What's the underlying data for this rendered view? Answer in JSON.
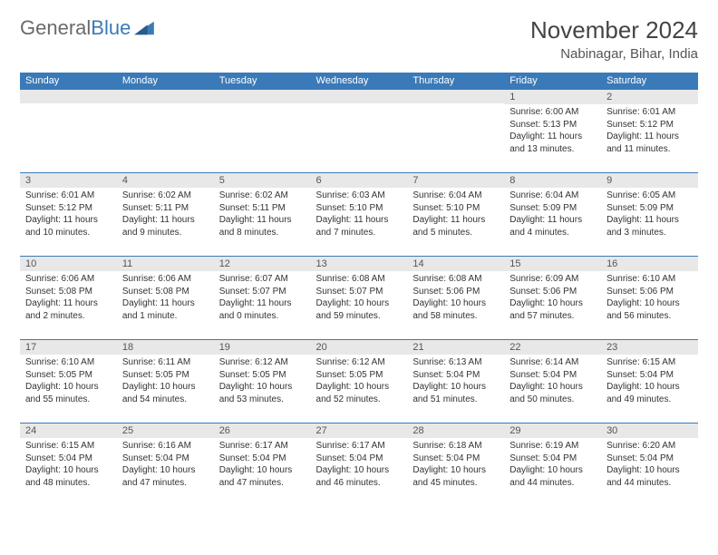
{
  "logo": {
    "text_gray": "General",
    "text_blue": "Blue"
  },
  "title": "November 2024",
  "location": "Nabinagar, Bihar, India",
  "colors": {
    "header_bg": "#3a7ab8",
    "header_text": "#ffffff",
    "daynum_bg": "#e8e8e8",
    "border": "#3a7ab8",
    "body_text": "#333333"
  },
  "weekdays": [
    "Sunday",
    "Monday",
    "Tuesday",
    "Wednesday",
    "Thursday",
    "Friday",
    "Saturday"
  ],
  "weeks": [
    [
      {
        "num": "",
        "sunrise": "",
        "sunset": "",
        "daylight": ""
      },
      {
        "num": "",
        "sunrise": "",
        "sunset": "",
        "daylight": ""
      },
      {
        "num": "",
        "sunrise": "",
        "sunset": "",
        "daylight": ""
      },
      {
        "num": "",
        "sunrise": "",
        "sunset": "",
        "daylight": ""
      },
      {
        "num": "",
        "sunrise": "",
        "sunset": "",
        "daylight": ""
      },
      {
        "num": "1",
        "sunrise": "Sunrise: 6:00 AM",
        "sunset": "Sunset: 5:13 PM",
        "daylight": "Daylight: 11 hours and 13 minutes."
      },
      {
        "num": "2",
        "sunrise": "Sunrise: 6:01 AM",
        "sunset": "Sunset: 5:12 PM",
        "daylight": "Daylight: 11 hours and 11 minutes."
      }
    ],
    [
      {
        "num": "3",
        "sunrise": "Sunrise: 6:01 AM",
        "sunset": "Sunset: 5:12 PM",
        "daylight": "Daylight: 11 hours and 10 minutes."
      },
      {
        "num": "4",
        "sunrise": "Sunrise: 6:02 AM",
        "sunset": "Sunset: 5:11 PM",
        "daylight": "Daylight: 11 hours and 9 minutes."
      },
      {
        "num": "5",
        "sunrise": "Sunrise: 6:02 AM",
        "sunset": "Sunset: 5:11 PM",
        "daylight": "Daylight: 11 hours and 8 minutes."
      },
      {
        "num": "6",
        "sunrise": "Sunrise: 6:03 AM",
        "sunset": "Sunset: 5:10 PM",
        "daylight": "Daylight: 11 hours and 7 minutes."
      },
      {
        "num": "7",
        "sunrise": "Sunrise: 6:04 AM",
        "sunset": "Sunset: 5:10 PM",
        "daylight": "Daylight: 11 hours and 5 minutes."
      },
      {
        "num": "8",
        "sunrise": "Sunrise: 6:04 AM",
        "sunset": "Sunset: 5:09 PM",
        "daylight": "Daylight: 11 hours and 4 minutes."
      },
      {
        "num": "9",
        "sunrise": "Sunrise: 6:05 AM",
        "sunset": "Sunset: 5:09 PM",
        "daylight": "Daylight: 11 hours and 3 minutes."
      }
    ],
    [
      {
        "num": "10",
        "sunrise": "Sunrise: 6:06 AM",
        "sunset": "Sunset: 5:08 PM",
        "daylight": "Daylight: 11 hours and 2 minutes."
      },
      {
        "num": "11",
        "sunrise": "Sunrise: 6:06 AM",
        "sunset": "Sunset: 5:08 PM",
        "daylight": "Daylight: 11 hours and 1 minute."
      },
      {
        "num": "12",
        "sunrise": "Sunrise: 6:07 AM",
        "sunset": "Sunset: 5:07 PM",
        "daylight": "Daylight: 11 hours and 0 minutes."
      },
      {
        "num": "13",
        "sunrise": "Sunrise: 6:08 AM",
        "sunset": "Sunset: 5:07 PM",
        "daylight": "Daylight: 10 hours and 59 minutes."
      },
      {
        "num": "14",
        "sunrise": "Sunrise: 6:08 AM",
        "sunset": "Sunset: 5:06 PM",
        "daylight": "Daylight: 10 hours and 58 minutes."
      },
      {
        "num": "15",
        "sunrise": "Sunrise: 6:09 AM",
        "sunset": "Sunset: 5:06 PM",
        "daylight": "Daylight: 10 hours and 57 minutes."
      },
      {
        "num": "16",
        "sunrise": "Sunrise: 6:10 AM",
        "sunset": "Sunset: 5:06 PM",
        "daylight": "Daylight: 10 hours and 56 minutes."
      }
    ],
    [
      {
        "num": "17",
        "sunrise": "Sunrise: 6:10 AM",
        "sunset": "Sunset: 5:05 PM",
        "daylight": "Daylight: 10 hours and 55 minutes."
      },
      {
        "num": "18",
        "sunrise": "Sunrise: 6:11 AM",
        "sunset": "Sunset: 5:05 PM",
        "daylight": "Daylight: 10 hours and 54 minutes."
      },
      {
        "num": "19",
        "sunrise": "Sunrise: 6:12 AM",
        "sunset": "Sunset: 5:05 PM",
        "daylight": "Daylight: 10 hours and 53 minutes."
      },
      {
        "num": "20",
        "sunrise": "Sunrise: 6:12 AM",
        "sunset": "Sunset: 5:05 PM",
        "daylight": "Daylight: 10 hours and 52 minutes."
      },
      {
        "num": "21",
        "sunrise": "Sunrise: 6:13 AM",
        "sunset": "Sunset: 5:04 PM",
        "daylight": "Daylight: 10 hours and 51 minutes."
      },
      {
        "num": "22",
        "sunrise": "Sunrise: 6:14 AM",
        "sunset": "Sunset: 5:04 PM",
        "daylight": "Daylight: 10 hours and 50 minutes."
      },
      {
        "num": "23",
        "sunrise": "Sunrise: 6:15 AM",
        "sunset": "Sunset: 5:04 PM",
        "daylight": "Daylight: 10 hours and 49 minutes."
      }
    ],
    [
      {
        "num": "24",
        "sunrise": "Sunrise: 6:15 AM",
        "sunset": "Sunset: 5:04 PM",
        "daylight": "Daylight: 10 hours and 48 minutes."
      },
      {
        "num": "25",
        "sunrise": "Sunrise: 6:16 AM",
        "sunset": "Sunset: 5:04 PM",
        "daylight": "Daylight: 10 hours and 47 minutes."
      },
      {
        "num": "26",
        "sunrise": "Sunrise: 6:17 AM",
        "sunset": "Sunset: 5:04 PM",
        "daylight": "Daylight: 10 hours and 47 minutes."
      },
      {
        "num": "27",
        "sunrise": "Sunrise: 6:17 AM",
        "sunset": "Sunset: 5:04 PM",
        "daylight": "Daylight: 10 hours and 46 minutes."
      },
      {
        "num": "28",
        "sunrise": "Sunrise: 6:18 AM",
        "sunset": "Sunset: 5:04 PM",
        "daylight": "Daylight: 10 hours and 45 minutes."
      },
      {
        "num": "29",
        "sunrise": "Sunrise: 6:19 AM",
        "sunset": "Sunset: 5:04 PM",
        "daylight": "Daylight: 10 hours and 44 minutes."
      },
      {
        "num": "30",
        "sunrise": "Sunrise: 6:20 AM",
        "sunset": "Sunset: 5:04 PM",
        "daylight": "Daylight: 10 hours and 44 minutes."
      }
    ]
  ]
}
